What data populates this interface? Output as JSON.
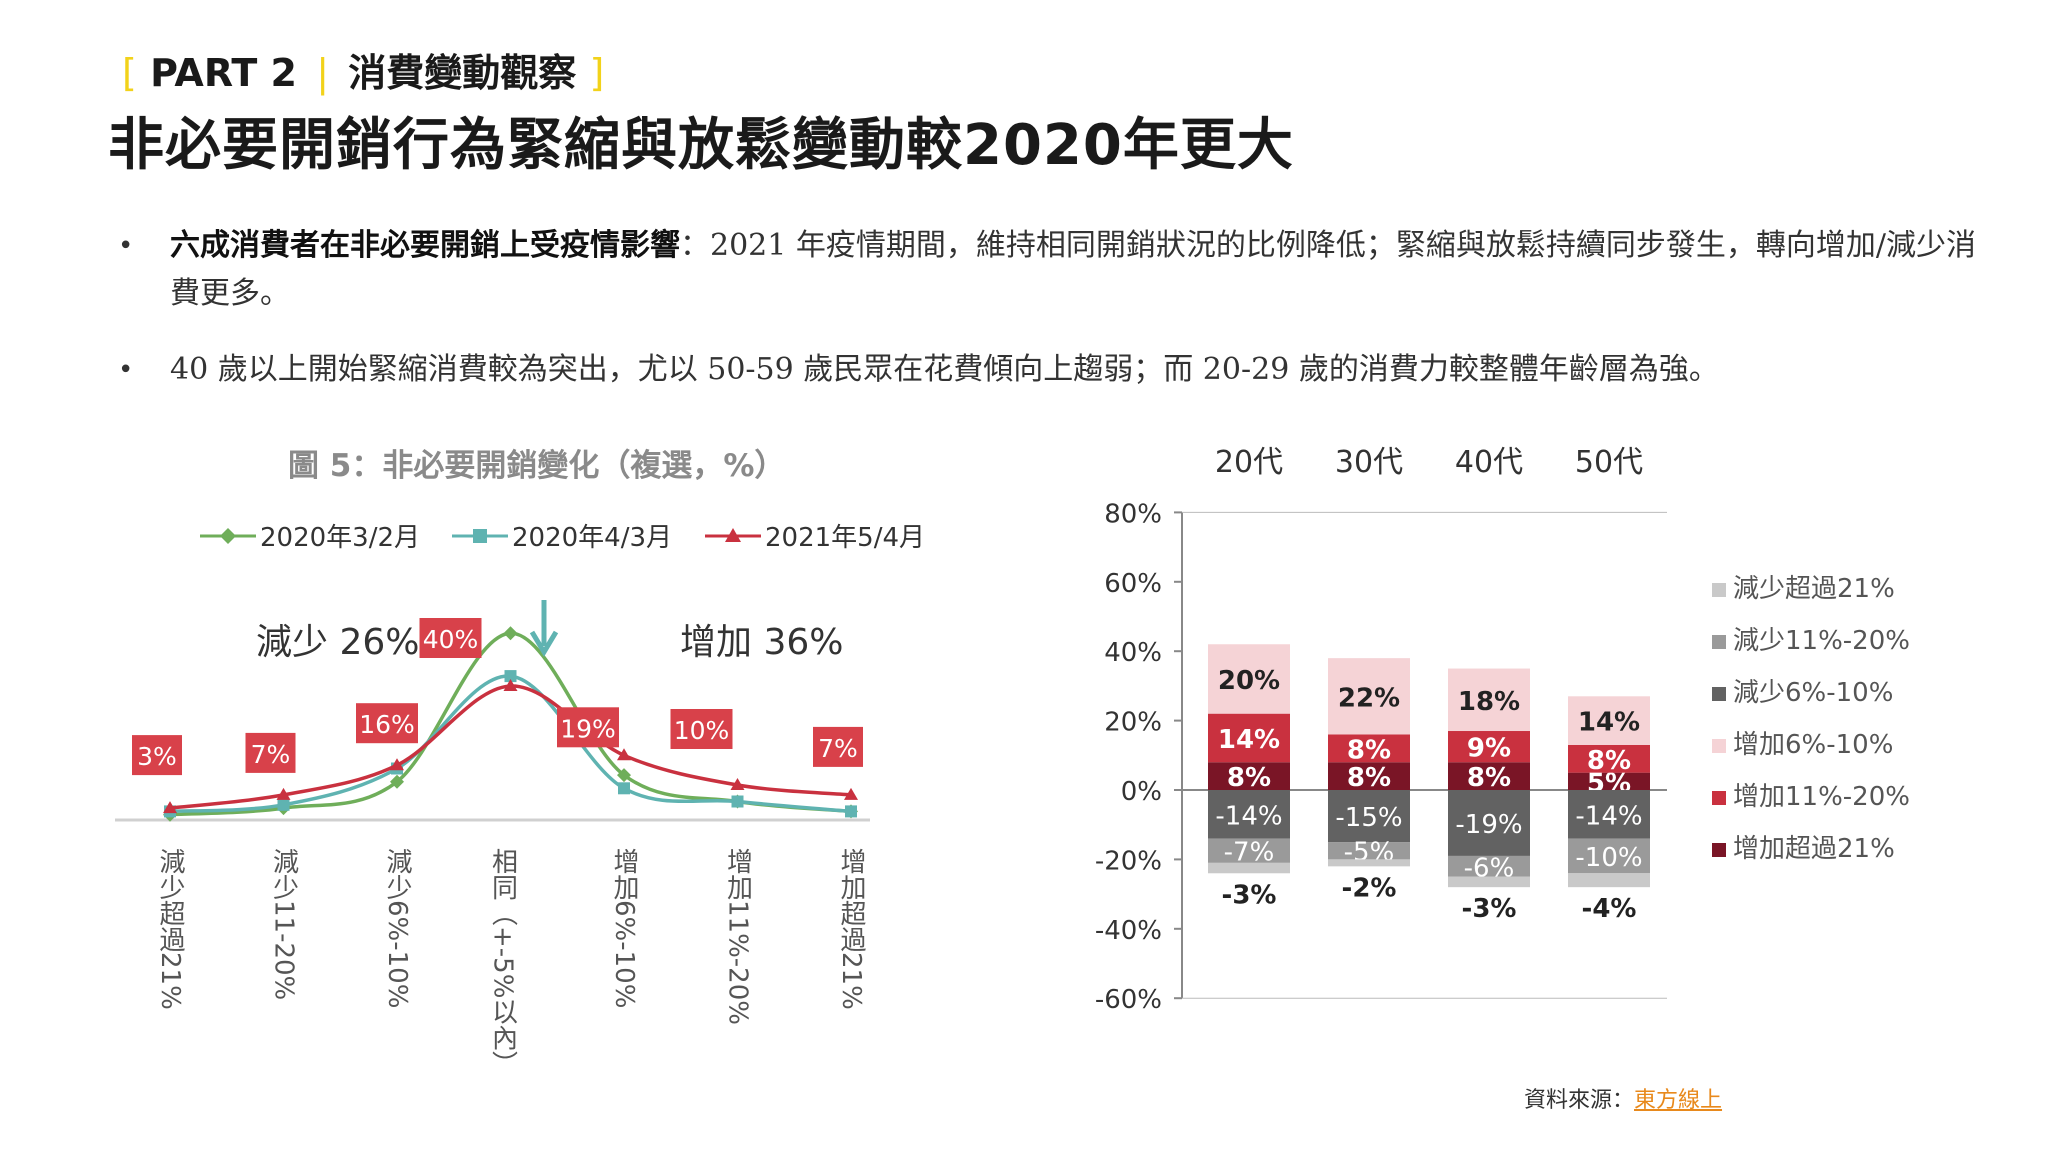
{
  "header": {
    "part_label": "PART 2",
    "section_title": "消費變動觀察",
    "main_title": "非必要開銷行為緊縮與放鬆變動較2020年更大"
  },
  "bullets": [
    {
      "bold": "六成消費者在非必要開銷上受疫情影響",
      "text": "：2021 年疫情期間，維持相同開銷狀況的比例降低；緊縮與放鬆持續同步發生，轉向增加/減少消費更多。"
    },
    {
      "bold": "",
      "text": "40 歲以上開始緊縮消費較為突出，尤以 50-59 歲民眾在花費傾向上趨弱；而 20-29 歲的消費力較整體年齡層為強。"
    }
  ],
  "chart_data": [
    {
      "type": "line",
      "title": "圖 5：非必要開銷變化（複選，%）",
      "categories": [
        "減少超過21%",
        "減少11-20%",
        "減少6%-10%",
        "相同（+-5%以內）",
        "增加6%-10%",
        "增加11%-20%",
        "增加超過21%"
      ],
      "series": [
        {
          "name": "2020年3/2月",
          "color": "#6fae5a",
          "marker": "diamond",
          "values": [
            1,
            3,
            11,
            56,
            13,
            5,
            2
          ]
        },
        {
          "name": "2020年4/3月",
          "color": "#5fb3b1",
          "marker": "square",
          "values": [
            2,
            4,
            15,
            43,
            9,
            5,
            2
          ]
        },
        {
          "name": "2021年5/4月",
          "color": "#c9313f",
          "marker": "triangle",
          "values": [
            3,
            7,
            16,
            40,
            19,
            10,
            7
          ]
        }
      ],
      "data_labels": [
        "3%",
        "7%",
        "16%",
        "40%",
        "19%",
        "10%",
        "7%"
      ],
      "annotations": {
        "left": "減少 26%",
        "right": "增加 36%"
      },
      "ylim": [
        0,
        60
      ]
    },
    {
      "type": "bar",
      "stacked": true,
      "categories": [
        "20代",
        "30代",
        "40代",
        "50代"
      ],
      "ylim": [
        -60,
        80
      ],
      "ytick_labels": [
        "80%",
        "60%",
        "40%",
        "20%",
        "0%",
        "-20%",
        "-40%",
        "-60%"
      ],
      "yticks": [
        80,
        60,
        40,
        20,
        0,
        -20,
        -40,
        -60
      ],
      "series": [
        {
          "name": "減少超過21%",
          "color": "#c9c9c9",
          "values": [
            -3,
            -2,
            -3,
            -4
          ],
          "labels": [
            "-3%",
            "-2%",
            "-3%",
            "-4%"
          ]
        },
        {
          "name": "減少11%-20%",
          "color": "#9a9a9a",
          "values": [
            -7,
            -5,
            -6,
            -10
          ],
          "labels": [
            "-7%",
            "-5%",
            "-6%",
            "-10%"
          ]
        },
        {
          "name": "減少6%-10%",
          "color": "#626262",
          "values": [
            -14,
            -15,
            -19,
            -14
          ],
          "labels": [
            "-14%",
            "-15%",
            "-19%",
            "-14%"
          ]
        },
        {
          "name": "增加6%-10%",
          "color": "#f5d3d6",
          "values": [
            20,
            22,
            18,
            14
          ],
          "labels": [
            "20%",
            "22%",
            "18%",
            "14%"
          ]
        },
        {
          "name": "增加11%-20%",
          "color": "#c9313f",
          "values": [
            14,
            8,
            9,
            8
          ],
          "labels": [
            "14%",
            "8%",
            "9%",
            "8%"
          ]
        },
        {
          "name": "增加超過21%",
          "color": "#7a1526",
          "values": [
            8,
            8,
            8,
            5
          ],
          "labels": [
            "8%",
            "8%",
            "8%",
            "5%"
          ]
        }
      ]
    }
  ],
  "footer": {
    "source_label": "資料來源：",
    "source_link": "東方線上"
  }
}
